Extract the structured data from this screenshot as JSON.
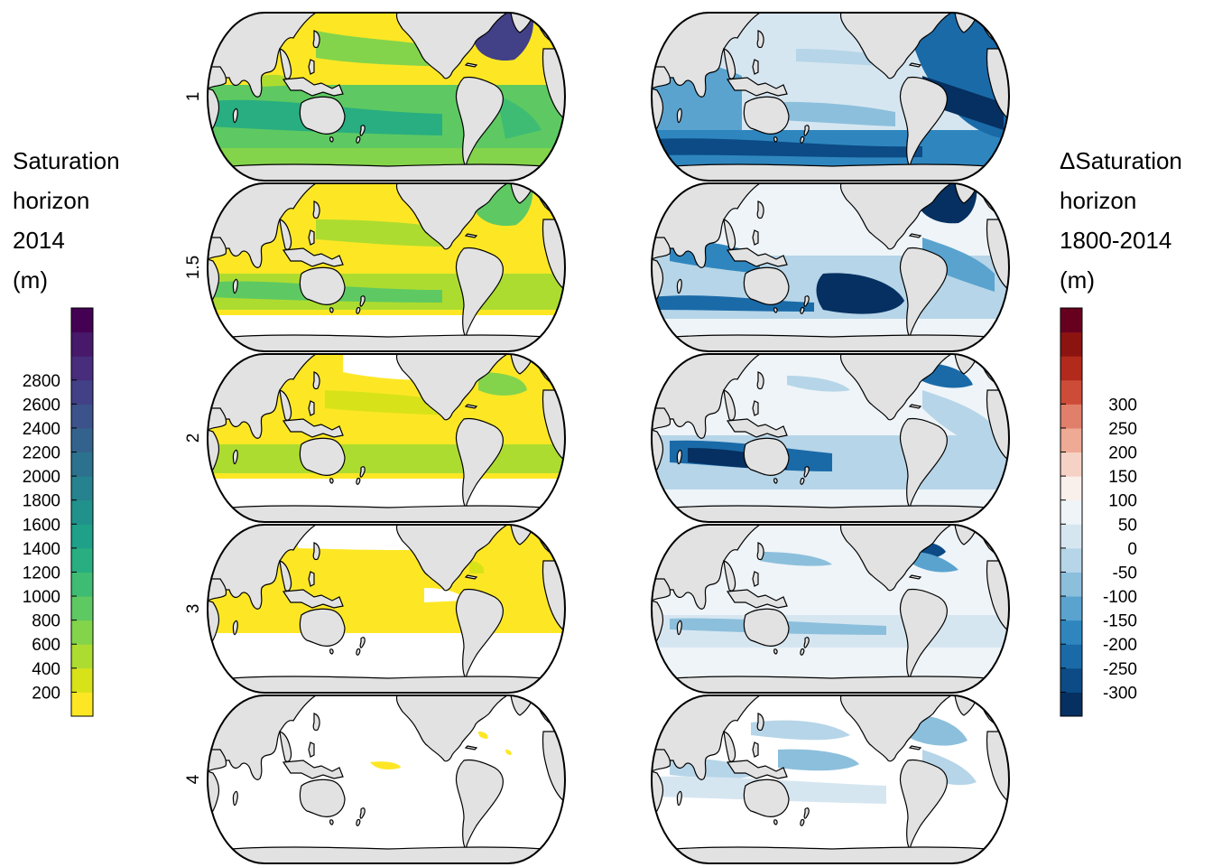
{
  "left_legend": {
    "title_lines": [
      "Saturation",
      "horizon",
      "2014",
      "(m)"
    ],
    "ticks": [
      "200",
      "400",
      "600",
      "800",
      "1000",
      "1200",
      "1400",
      "1600",
      "1800",
      "2000",
      "2200",
      "2400",
      "2600",
      "2800"
    ],
    "colors": [
      "#fde725",
      "#d8e219",
      "#addc30",
      "#84d44b",
      "#5ec962",
      "#3fbc73",
      "#28ae80",
      "#1fa088",
      "#21918c",
      "#26828e",
      "#2c728e",
      "#33638d",
      "#3b528b",
      "#424086",
      "#472d7b",
      "#48186a",
      "#440154"
    ]
  },
  "right_legend": {
    "title_lines": [
      "ΔSaturation",
      "horizon",
      "1800-2014",
      "(m)"
    ],
    "ticks": [
      "-300",
      "-250",
      "-200",
      "-150",
      "-100",
      "-50",
      "0",
      "50",
      "100",
      "150",
      "200",
      "250",
      "300"
    ],
    "colors": [
      "#053061",
      "#0c4b85",
      "#1a6aa8",
      "#2f86bf",
      "#5aa3cf",
      "#8cbfdc",
      "#b6d5e8",
      "#d6e6f1",
      "#eef4f8",
      "#f9efeb",
      "#f6d2c6",
      "#eeaa94",
      "#e07f6a",
      "#cc4c38",
      "#b22a1c",
      "#8c1410",
      "#67001f"
    ]
  },
  "rows": [
    {
      "label": "1"
    },
    {
      "label": "1.5"
    },
    {
      "label": "2"
    },
    {
      "label": "3"
    },
    {
      "label": "4"
    }
  ],
  "map_colors": {
    "land": "#e2e2e2",
    "outline": "#000000",
    "no_data": "#ffffff"
  }
}
